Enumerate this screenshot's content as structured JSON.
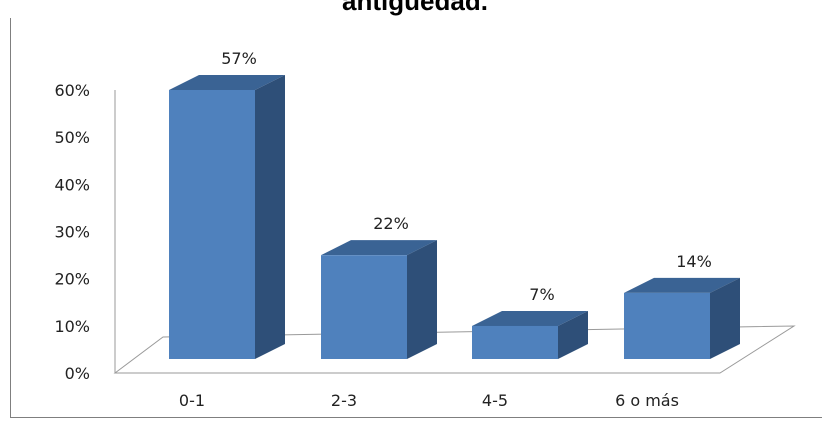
{
  "chart_data": {
    "type": "bar",
    "title": "antigüedad.",
    "xlabel": "",
    "ylabel": "",
    "categories": [
      "0-1",
      "2-3",
      "4-5",
      "6 o más"
    ],
    "values": [
      57,
      22,
      7,
      14
    ],
    "value_labels": [
      "57%",
      "22%",
      "7%",
      "14%"
    ],
    "y_ticks": [
      "0%",
      "10%",
      "20%",
      "30%",
      "40%",
      "50%",
      "60%"
    ],
    "ylim": [
      0,
      60
    ],
    "grid": false,
    "legend": "none",
    "style": "3d-column"
  },
  "colors": {
    "bar_front": "#4f81bd",
    "bar_side": "#2e4f78",
    "bar_top": "#3a6394",
    "axis": "#9a9a9a"
  }
}
